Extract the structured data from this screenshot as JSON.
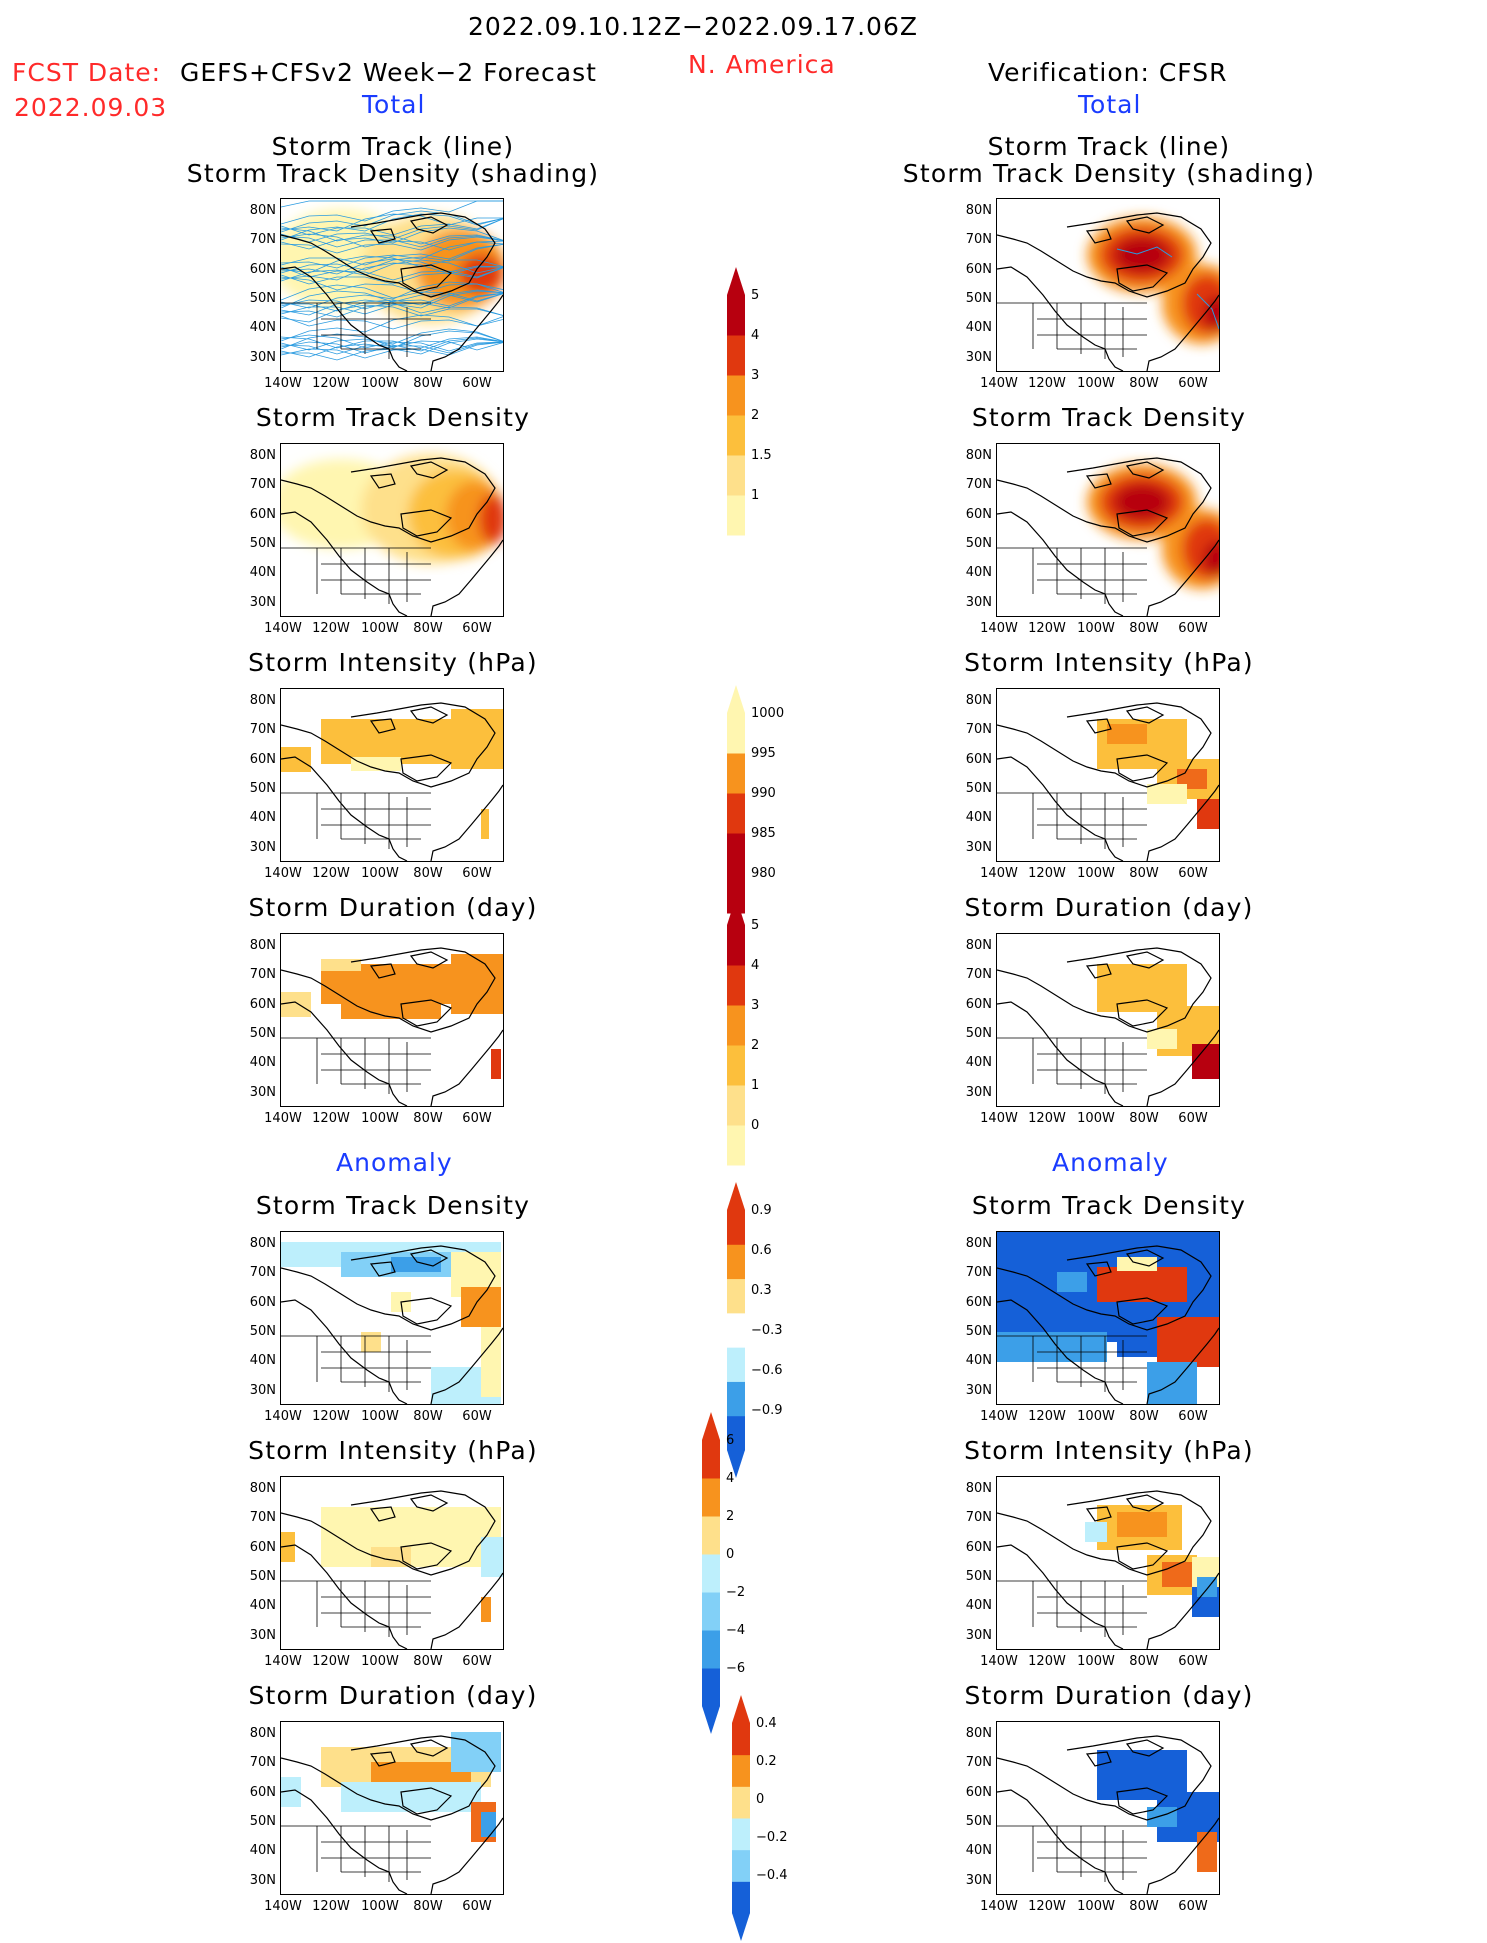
{
  "header": {
    "date_range": "2022.09.10.12Z−2022.09.17.06Z",
    "fcst_label": "FCST Date:",
    "fcst_date": "2022.09.03",
    "model": "GEFS+CFSv2 Week−2 Forecast",
    "region": "N. America",
    "verification": "Verification: CFSR"
  },
  "sections": {
    "total": "Total",
    "anomaly": "Anomaly"
  },
  "panel_titles": {
    "track_line": "Storm Track (line)",
    "track_shading": "Storm Track Density (shading)",
    "density": "Storm Track Density",
    "intensity": "Storm Intensity (hPa)",
    "duration": "Storm Duration (day)"
  },
  "axes": {
    "lat": [
      "80N",
      "70N",
      "60N",
      "50N",
      "40N",
      "30N"
    ],
    "lon": [
      "140W",
      "120W",
      "100W",
      "80W",
      "60W"
    ]
  },
  "colorbars": {
    "density_total": [
      "5",
      "4",
      "3",
      "2",
      "1.5",
      "1"
    ],
    "intensity_total": [
      "1000",
      "995",
      "990",
      "985",
      "980"
    ],
    "duration_total": [
      "5",
      "4",
      "3",
      "2",
      "1",
      "0"
    ],
    "density_anom": [
      "0.9",
      "0.6",
      "0.3",
      "−0.3",
      "−0.6",
      "−0.9"
    ],
    "intensity_anom": [
      "6",
      "4",
      "2",
      "0",
      "−2",
      "−4",
      "−6"
    ],
    "duration_anom": [
      "0.4",
      "0.2",
      "0",
      "−0.2",
      "−0.4"
    ]
  },
  "colors": {
    "warm": [
      "#fff6b0",
      "#fee08b",
      "#fcbf3c",
      "#f7931e",
      "#ef6a1a",
      "#e0380f",
      "#b7000f"
    ],
    "cool": [
      "#bdeffc",
      "#82d0f7",
      "#3c9fe8",
      "#1560d8"
    ],
    "track_line": "#2a9be0"
  }
}
